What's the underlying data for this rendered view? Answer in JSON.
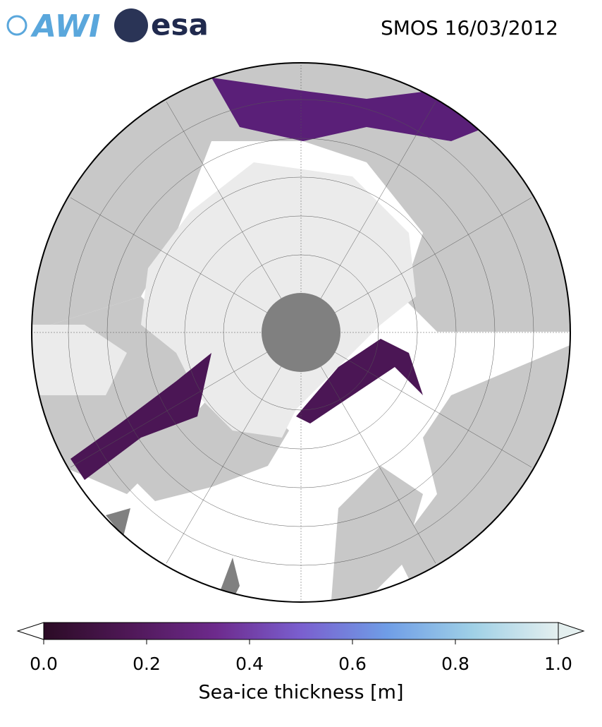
{
  "header": {
    "logos": [
      "AWI",
      "esa"
    ],
    "title": "SMOS 16/03/2012"
  },
  "colorbar": {
    "label": "Sea-ice thickness [m]",
    "lim": [
      0,
      1
    ],
    "ticks": [
      {
        "value": 0,
        "label": "0.0"
      },
      0.2,
      0.4,
      0.6,
      0.8,
      {
        "value": 1,
        "label": "1.0"
      }
    ],
    "colors": [
      "#2b0b25",
      "#4f1857",
      "#6d2a8c",
      "#7a5fcf",
      "#6f9de6",
      "#9fd0e6",
      "#e4efef"
    ]
  }
}
